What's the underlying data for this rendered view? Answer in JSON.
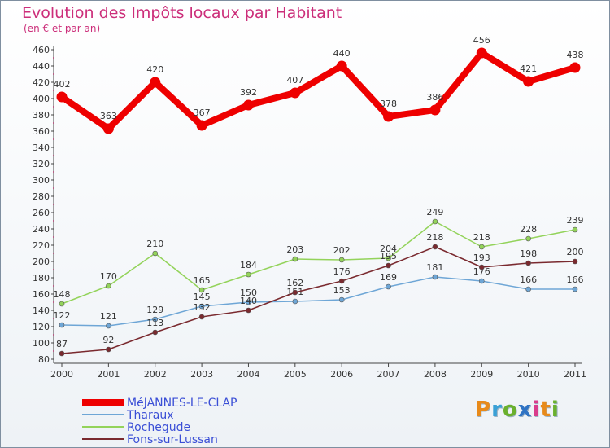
{
  "title": "Evolution des Impôts locaux par Habitant",
  "subtitle": "(en € et par an)",
  "logo": {
    "text": "Proxiti",
    "letters": [
      "P",
      "r",
      "o",
      "x",
      "i",
      "t",
      "i"
    ],
    "colors": [
      "#e88a1a",
      "#3aa0d6",
      "#6ab02e",
      "#2f73c4",
      "#d93c8c",
      "#e88a1a",
      "#6ab02e"
    ]
  },
  "chart_data": {
    "type": "line",
    "title": "Evolution des Impôts locaux par Habitant",
    "subtitle": "(en € et par an)",
    "x": [
      "2000",
      "2001",
      "2002",
      "2003",
      "2004",
      "2005",
      "2006",
      "2007",
      "2008",
      "2009",
      "2010",
      "2011"
    ],
    "ylim": [
      80,
      460
    ],
    "ytick_step": 20,
    "grid": false,
    "legend_position": "bottom-left",
    "series": [
      {
        "name": "MéJANNES-LE-CLAP",
        "color": "#ee0000",
        "values": [
          402,
          363,
          420,
          367,
          392,
          407,
          440,
          378,
          386,
          456,
          421,
          438
        ],
        "labels": [
          "402",
          "363",
          "420",
          "367",
          "392",
          "407",
          "440",
          "378",
          "386",
          "456",
          "421",
          "438"
        ]
      },
      {
        "name": "Tharaux",
        "color": "#6ea6d6",
        "values": [
          122,
          121,
          129,
          145,
          150,
          151,
          153,
          169,
          181,
          176,
          166,
          166
        ],
        "labels": [
          "122",
          "121",
          "129",
          "145",
          "150",
          "151",
          "153",
          "169",
          "181",
          "176",
          "166",
          "166"
        ]
      },
      {
        "name": "Rochegude",
        "color": "#93d35a",
        "values": [
          148,
          170,
          210,
          165,
          184,
          203,
          202,
          204,
          249,
          218,
          228,
          239
        ],
        "labels": [
          "148",
          "170",
          "210",
          "165",
          "184",
          "203",
          "202",
          "204",
          "249",
          "218",
          "228",
          "239"
        ]
      },
      {
        "name": "Fons-sur-Lussan",
        "color": "#7a2a2f",
        "values": [
          87,
          92,
          113,
          132,
          140,
          162,
          176,
          195,
          218,
          193,
          198,
          200
        ],
        "labels": [
          "87",
          "92",
          "113",
          "132",
          "140",
          "162",
          "176",
          "195",
          "218",
          "193",
          "198",
          "200"
        ]
      }
    ]
  }
}
